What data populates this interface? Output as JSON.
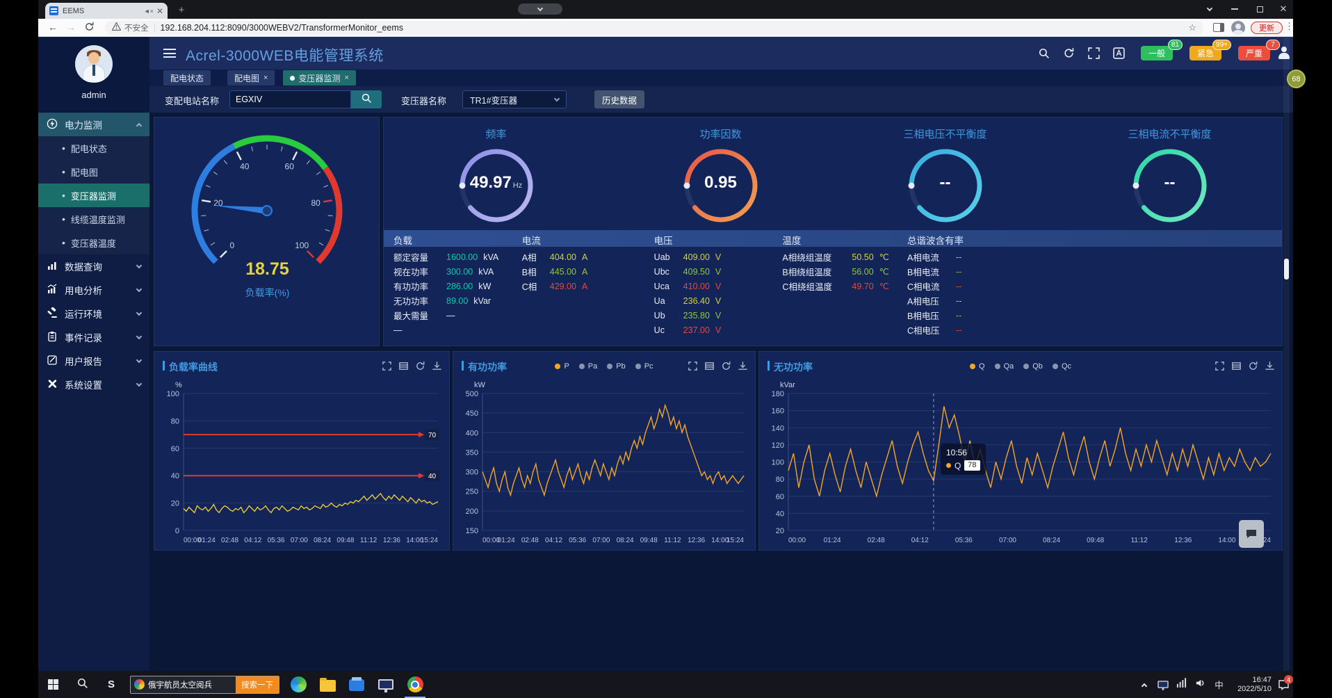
{
  "palette": {
    "teal": "#00cfa8",
    "yellow": "#d6d335",
    "green": "#8fc93a",
    "red": "#e8473c",
    "accent_blue": "#3f9ae0",
    "line_yellow": "#e8c83a",
    "line_orange": "#f5a623"
  },
  "browser": {
    "tab_title": "EEMS",
    "security_text": "不安全",
    "url": "192.168.204.112:8090/3000WEBV2/TransformerMonitor_eems",
    "update_button": "更新"
  },
  "header": {
    "title": "Acrel-3000WEB电能管理系统",
    "alarms": [
      {
        "label": "一般",
        "count": "81",
        "color": "#2fbf5f"
      },
      {
        "label": "紧急",
        "count": "99+",
        "color": "#f0a91f"
      },
      {
        "label": "严重",
        "count": "7",
        "color": "#ea4f3e"
      }
    ]
  },
  "nav_tabs": [
    {
      "label": "配电状态",
      "closable": false,
      "active": false
    },
    {
      "label": "配电图",
      "closable": true,
      "active": false
    },
    {
      "label": "变压器监测",
      "closable": true,
      "active": true
    }
  ],
  "filters": {
    "station_label": "变配电站名称",
    "station_value": "EGXIV",
    "transformer_label": "变压器名称",
    "transformer_value": "TR1#变压器",
    "history_button": "历史数据"
  },
  "sidebar": {
    "username": "admin",
    "groups": [
      {
        "label": "电力监测",
        "icon": "power-icon",
        "expanded": true,
        "children": [
          {
            "label": "配电状态",
            "active": false
          },
          {
            "label": "配电图",
            "active": false
          },
          {
            "label": "变压器监测",
            "active": true
          },
          {
            "label": "线缆温度监测",
            "active": false
          },
          {
            "label": "变压器温度",
            "active": false
          }
        ]
      },
      {
        "label": "数据查询",
        "icon": "data-query-icon",
        "expanded": false,
        "children": []
      },
      {
        "label": "用电分析",
        "icon": "analysis-icon",
        "expanded": false,
        "children": []
      },
      {
        "label": "运行环境",
        "icon": "environment-icon",
        "expanded": false,
        "children": []
      },
      {
        "label": "事件记录",
        "icon": "event-log-icon",
        "expanded": false,
        "children": []
      },
      {
        "label": "用户报告",
        "icon": "report-icon",
        "expanded": false,
        "children": []
      },
      {
        "label": "系统设置",
        "icon": "settings-icon",
        "expanded": false,
        "children": []
      }
    ]
  },
  "gauge_panel": {
    "value": "18.75",
    "label": "负载率(%)",
    "min": 0,
    "max": 100,
    "ticks": [
      0,
      20,
      40,
      60,
      80,
      100
    ],
    "zones": [
      {
        "from": 0,
        "to": 40,
        "color": "#2e7de0"
      },
      {
        "from": 40,
        "to": 70,
        "color": "#29cc3e"
      },
      {
        "from": 70,
        "to": 100,
        "color": "#e0392e"
      }
    ]
  },
  "ring_gauges": [
    {
      "title": "频率",
      "value": "49.97",
      "unit": "Hz",
      "color": "#8e8fe6",
      "color2": "#b9b9f2"
    },
    {
      "title": "功率因数",
      "value": "0.95",
      "unit": "",
      "color": "#e8584a",
      "color2": "#f0a050"
    },
    {
      "title": "三相电压不平衡度",
      "value": "--",
      "unit": "",
      "color": "#38aee0",
      "color2": "#58d0e8"
    },
    {
      "title": "三相电流不平衡度",
      "value": "--",
      "unit": "",
      "color": "#2ed8a8",
      "color2": "#70e8c0"
    }
  ],
  "data_table": {
    "columns": [
      {
        "header": "负载",
        "label_width": 64,
        "rows": [
          {
            "label": "额定容量",
            "value": "1600.00",
            "unit": "kVA",
            "color": "teal",
            "unit_color": "white"
          },
          {
            "label": "视在功率",
            "value": "300.00",
            "unit": "kVA",
            "color": "teal",
            "unit_color": "white"
          },
          {
            "label": "有功功率",
            "value": "286.00",
            "unit": "kW",
            "color": "teal",
            "unit_color": "white"
          },
          {
            "label": "无功功率",
            "value": "89.00",
            "unit": "kVar",
            "color": "teal",
            "unit_color": "white"
          },
          {
            "label": "最大需量",
            "value": "—",
            "unit": "",
            "color": "white",
            "unit_color": "white"
          },
          {
            "label": "—",
            "value": "",
            "unit": "",
            "color": "white",
            "unit_color": "white"
          }
        ]
      },
      {
        "header": "电流",
        "label_width": 28,
        "rows": [
          {
            "label": "A相",
            "value": "404.00",
            "unit": "A",
            "color": "yellow",
            "unit_color": "yellow"
          },
          {
            "label": "B相",
            "value": "445.00",
            "unit": "A",
            "color": "green",
            "unit_color": "green"
          },
          {
            "label": "C相",
            "value": "429.00",
            "unit": "A",
            "color": "red",
            "unit_color": "red"
          }
        ]
      },
      {
        "header": "电压",
        "label_width": 30,
        "rows": [
          {
            "label": "Uab",
            "value": "409.00",
            "unit": "V",
            "color": "yellow",
            "unit_color": "yellow"
          },
          {
            "label": "Ubc",
            "value": "409.50",
            "unit": "V",
            "color": "green",
            "unit_color": "green"
          },
          {
            "label": "Uca",
            "value": "410.00",
            "unit": "V",
            "color": "red",
            "unit_color": "red"
          },
          {
            "label": "Ua",
            "value": "236.40",
            "unit": "V",
            "color": "yellow",
            "unit_color": "yellow"
          },
          {
            "label": "Ub",
            "value": "235.80",
            "unit": "V",
            "color": "green",
            "unit_color": "green"
          },
          {
            "label": "Uc",
            "value": "237.00",
            "unit": "V",
            "color": "red",
            "unit_color": "red"
          }
        ]
      },
      {
        "header": "温度",
        "label_width": 88,
        "rows": [
          {
            "label": "A相绕组温度",
            "value": "50.50",
            "unit": "℃",
            "color": "yellow",
            "unit_color": "yellow"
          },
          {
            "label": "B相绕组温度",
            "value": "56.00",
            "unit": "℃",
            "color": "green",
            "unit_color": "green"
          },
          {
            "label": "C相绕组温度",
            "value": "49.70",
            "unit": "℃",
            "color": "red",
            "unit_color": "red"
          }
        ]
      },
      {
        "header": "总谐波含有率",
        "label_width": 58,
        "rows": [
          {
            "label": "A相电流",
            "value": "--",
            "unit": "",
            "color": "yellow",
            "unit_color": "yellow"
          },
          {
            "label": "B相电流",
            "value": "--",
            "unit": "",
            "color": "green",
            "unit_color": "green"
          },
          {
            "label": "C相电流",
            "value": "--",
            "unit": "",
            "color": "red",
            "unit_color": "red"
          },
          {
            "label": "A相电压",
            "value": "--",
            "unit": "",
            "color": "yellow",
            "unit_color": "yellow"
          },
          {
            "label": "B相电压",
            "value": "--",
            "unit": "",
            "color": "green",
            "unit_color": "green"
          },
          {
            "label": "C相电压",
            "value": "--",
            "unit": "",
            "color": "red",
            "unit_color": "red"
          }
        ]
      }
    ]
  },
  "chart_data": [
    {
      "type": "line",
      "name": "load-rate-curve",
      "title": "负载率曲线",
      "unit": "%",
      "ylim": [
        0,
        100
      ],
      "ytick_step": 20,
      "grid": true,
      "legend": [],
      "x_labels": [
        "00:00",
        "01:24",
        "02:48",
        "04:12",
        "05:36",
        "07:00",
        "08:24",
        "09:48",
        "11:12",
        "12:36",
        "14:00",
        "15:24"
      ],
      "thresholds": [
        {
          "value": 70,
          "label": "70",
          "color": "#e0392e"
        },
        {
          "value": 40,
          "label": "40",
          "color": "#e0392e"
        }
      ],
      "series": [
        {
          "name": "负载率",
          "color": "#e8c83a",
          "values": [
            16,
            14,
            17,
            15,
            13,
            18,
            16,
            15,
            17,
            14,
            16,
            19,
            15,
            13,
            16,
            18,
            17,
            15,
            14,
            16,
            15,
            17,
            13,
            15,
            18,
            16,
            14,
            17,
            15,
            16,
            18,
            15,
            13,
            16,
            17,
            15,
            18,
            16,
            14,
            15,
            17,
            16,
            15,
            18,
            16,
            17,
            15,
            16,
            18,
            17,
            16,
            19,
            17,
            18,
            20,
            18,
            17,
            19,
            18,
            20,
            19,
            21,
            20,
            22,
            21,
            23,
            25,
            22,
            24,
            26,
            23,
            25,
            27,
            24,
            22,
            25,
            23,
            26,
            24,
            22,
            25,
            23,
            21,
            24,
            22,
            20,
            23,
            21,
            22,
            20,
            21,
            19,
            20,
            21
          ]
        }
      ]
    },
    {
      "type": "line",
      "name": "active-power",
      "title": "有功功率",
      "unit": "kW",
      "ylim": [
        150,
        500
      ],
      "ytick_step": 50,
      "grid": true,
      "legend": [
        {
          "label": "P",
          "color": "#f5a623"
        },
        {
          "label": "Pa",
          "color": "#8a96ad"
        },
        {
          "label": "Pb",
          "color": "#8a96ad"
        },
        {
          "label": "Pc",
          "color": "#8a96ad"
        }
      ],
      "x_labels": [
        "00:00",
        "01:24",
        "02:48",
        "04:12",
        "05:36",
        "07:00",
        "08:24",
        "09:48",
        "11:12",
        "12:36",
        "14:00",
        "15:24"
      ],
      "thresholds": [],
      "series": [
        {
          "name": "P",
          "color": "#f5a623",
          "values": [
            300,
            280,
            260,
            290,
            310,
            270,
            250,
            280,
            300,
            260,
            240,
            270,
            290,
            310,
            280,
            260,
            290,
            270,
            300,
            320,
            280,
            260,
            240,
            270,
            290,
            310,
            330,
            300,
            280,
            260,
            290,
            310,
            280,
            300,
            320,
            290,
            270,
            300,
            280,
            310,
            330,
            310,
            290,
            320,
            300,
            280,
            310,
            290,
            320,
            340,
            320,
            350,
            330,
            360,
            380,
            360,
            390,
            370,
            400,
            420,
            440,
            410,
            430,
            460,
            440,
            470,
            450,
            420,
            440,
            410,
            430,
            400,
            420,
            390,
            370,
            350,
            330,
            310,
            290,
            300,
            280,
            290,
            270,
            290,
            300,
            280,
            290,
            270,
            280,
            290,
            280,
            270,
            280,
            290
          ]
        }
      ]
    },
    {
      "type": "line",
      "name": "reactive-power",
      "title": "无功功率",
      "unit": "kVar",
      "ylim": [
        20,
        180
      ],
      "ytick_step": 20,
      "grid": true,
      "legend": [
        {
          "label": "Q",
          "color": "#f5a623"
        },
        {
          "label": "Qa",
          "color": "#8a96ad"
        },
        {
          "label": "Qb",
          "color": "#8a96ad"
        },
        {
          "label": "Qc",
          "color": "#8a96ad"
        }
      ],
      "x_labels": [
        "00:00",
        "01:24",
        "02:48",
        "04:12",
        "05:36",
        "07:00",
        "08:24",
        "09:48",
        "11:12",
        "12:36",
        "14:00",
        "15:24"
      ],
      "thresholds": [],
      "cursor": {
        "index": 28,
        "time": "10:56",
        "series": "Q",
        "value": "78"
      },
      "series": [
        {
          "name": "Q",
          "color": "#f5a623",
          "values": [
            90,
            110,
            70,
            100,
            120,
            80,
            60,
            90,
            110,
            85,
            65,
            95,
            115,
            90,
            70,
            100,
            80,
            60,
            85,
            105,
            125,
            95,
            75,
            100,
            120,
            135,
            110,
            90,
            78,
            120,
            165,
            140,
            155,
            130,
            100,
            125,
            95,
            115,
            90,
            70,
            100,
            80,
            105,
            125,
            95,
            75,
            105,
            85,
            110,
            90,
            70,
            95,
            115,
            135,
            105,
            85,
            110,
            130,
            100,
            80,
            105,
            125,
            95,
            115,
            140,
            110,
            90,
            115,
            95,
            120,
            100,
            125,
            105,
            85,
            110,
            90,
            115,
            95,
            120,
            100,
            80,
            105,
            85,
            110,
            90,
            105,
            95,
            115,
            100,
            90,
            105,
            95,
            100,
            110
          ]
        }
      ]
    }
  ],
  "floating": {
    "badge": "68"
  },
  "taskbar": {
    "search_widget": {
      "text": "俄宇航员太空阅兵",
      "button": "搜索一下"
    },
    "input_indicator": "中",
    "clock": {
      "time": "16:47",
      "date": "2022/5/10"
    },
    "notification_count": "4"
  }
}
